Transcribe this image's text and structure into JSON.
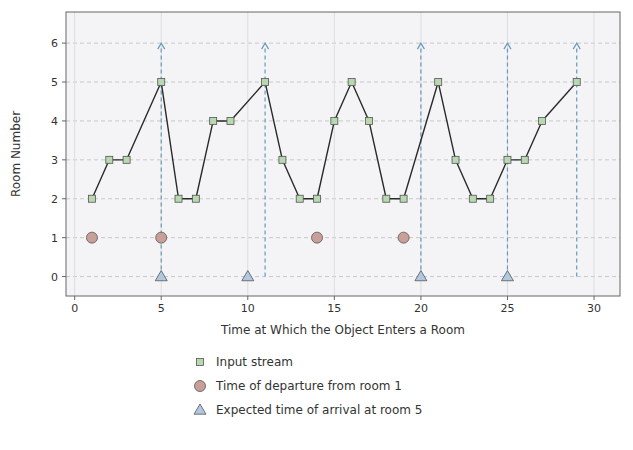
{
  "chart_data": {
    "type": "line",
    "xlabel": "Time at Which the Object Enters a Room",
    "ylabel": "Room Number",
    "xlim": [
      -0.5,
      31.5
    ],
    "ylim": [
      -0.5,
      6.8
    ],
    "xticks": [
      0,
      5,
      10,
      15,
      20,
      25,
      30
    ],
    "yticks": [
      0,
      1,
      2,
      3,
      4,
      5,
      6
    ],
    "grid": true,
    "legend": "bottom",
    "series": [
      {
        "name": "Input stream",
        "type": "line",
        "marker": "square",
        "line_style": "solid",
        "color": "#b8d8b0",
        "x": [
          1,
          2,
          3,
          5,
          6,
          7,
          8,
          9,
          11,
          12,
          13,
          14,
          15,
          16,
          17,
          18,
          19,
          21,
          22,
          23,
          24,
          25,
          26,
          27,
          29
        ],
        "values": [
          2,
          3,
          3,
          5,
          2,
          2,
          4,
          4,
          5,
          3,
          2,
          2,
          4,
          5,
          4,
          2,
          2,
          5,
          3,
          2,
          2,
          3,
          3,
          4,
          5
        ]
      },
      {
        "name": "Time of departure from room 1",
        "type": "scatter",
        "marker": "circle",
        "line_style": "none",
        "color": "#c8a098",
        "x": [
          1,
          5,
          14,
          19
        ],
        "values": [
          1,
          1,
          1,
          1
        ]
      },
      {
        "name": "Expected time of arrival at room 5",
        "type": "scatter",
        "marker": "triangle",
        "line_style": "none",
        "color": "#b0c8e0",
        "x": [
          5,
          10,
          20,
          25
        ],
        "values": [
          0,
          0,
          0,
          0
        ]
      }
    ],
    "vlines": {
      "x": [
        5,
        11,
        20,
        25,
        29
      ],
      "to": 6,
      "color": "#6699bb"
    }
  }
}
